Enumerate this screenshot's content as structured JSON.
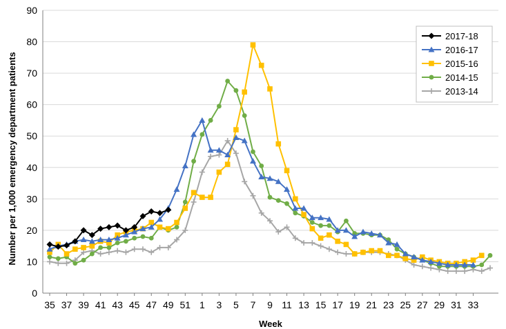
{
  "chart_data": {
    "type": "line",
    "xlabel": "Week",
    "ylabel": "Number per 1,000 emergency department patients",
    "ylim": [
      0,
      90
    ],
    "yticks": [
      0,
      10,
      20,
      30,
      40,
      50,
      60,
      70,
      80,
      90
    ],
    "legend_position": "top-right",
    "grid": true,
    "weeks": [
      "35",
      "36",
      "37",
      "38",
      "39",
      "40",
      "41",
      "42",
      "43",
      "44",
      "45",
      "46",
      "47",
      "48",
      "49",
      "50",
      "51",
      "52",
      "1",
      "2",
      "3",
      "4",
      "5",
      "6",
      "7",
      "8",
      "9",
      "10",
      "11",
      "12",
      "13",
      "14",
      "15",
      "16",
      "17",
      "18",
      "19",
      "20",
      "21",
      "22",
      "23",
      "24",
      "25",
      "26",
      "27",
      "28",
      "29",
      "30",
      "31",
      "32",
      "33",
      "34",
      "35"
    ],
    "tick_labels": [
      "35",
      "37",
      "39",
      "41",
      "43",
      "45",
      "47",
      "49",
      "51",
      "1",
      "3",
      "5",
      "7",
      "9",
      "11",
      "13",
      "15",
      "17",
      "19",
      "21",
      "23",
      "25",
      "27",
      "29",
      "31",
      "33"
    ],
    "series": [
      {
        "name": "2017-18",
        "color": "#000000",
        "marker": "diamond",
        "values": [
          15.5,
          14.8,
          15.2,
          16.5,
          20.0,
          18.5,
          20.5,
          21.0,
          21.5,
          20.0,
          21.0,
          24.5,
          26.0,
          25.5,
          26.5
        ]
      },
      {
        "name": "2016-17",
        "color": "#4472c4",
        "marker": "triangle",
        "values": [
          14.0,
          15.0,
          15.5,
          16.5,
          17.0,
          16.5,
          17.0,
          17.0,
          17.5,
          18.5,
          19.5,
          20.5,
          21.0,
          23.5,
          27.0,
          33.0,
          40.5,
          50.5,
          55.0,
          45.5,
          45.5,
          44.0,
          49.5,
          48.5,
          42.0,
          37.0,
          36.5,
          35.5,
          33.0,
          27.0,
          27.0,
          24.0,
          24.0,
          23.5,
          20.0,
          20.0,
          18.0,
          19.5,
          19.0,
          18.5,
          16.0,
          15.5,
          12.5,
          11.5,
          10.5,
          10.0,
          9.5,
          9.0,
          9.0,
          9.0,
          9.0
        ]
      },
      {
        "name": "2015-16",
        "color": "#ffc000",
        "marker": "square",
        "values": [
          13.0,
          15.5,
          12.5,
          14.0,
          14.5,
          15.0,
          16.5,
          16.0,
          18.5,
          19.5,
          20.0,
          20.5,
          22.5,
          21.0,
          20.5,
          22.5,
          27.0,
          32.0,
          30.5,
          30.5,
          38.5,
          41.0,
          52.0,
          64.0,
          79.0,
          72.5,
          65.0,
          47.5,
          39.0,
          30.0,
          25.0,
          20.5,
          17.5,
          18.5,
          16.5,
          15.5,
          12.5,
          13.0,
          13.5,
          13.5,
          12.0,
          12.0,
          11.0,
          10.5,
          11.5,
          10.5,
          10.0,
          9.5,
          9.5,
          10.0,
          10.5,
          12.0
        ]
      },
      {
        "name": "2014-15",
        "color": "#70ad47",
        "marker": "circle",
        "values": [
          11.5,
          11.0,
          11.5,
          9.5,
          10.5,
          12.5,
          14.5,
          14.5,
          16.0,
          16.5,
          17.5,
          18.0,
          17.5,
          21.0,
          20.0,
          21.0,
          29.0,
          42.0,
          50.5,
          55.0,
          59.5,
          67.5,
          64.5,
          56.5,
          45.0,
          40.5,
          30.5,
          29.5,
          28.5,
          25.5,
          24.5,
          22.5,
          21.5,
          21.5,
          19.5,
          23.0,
          19.0,
          19.0,
          18.5,
          18.5,
          17.0,
          14.0,
          12.5,
          11.5,
          10.5,
          9.5,
          8.5,
          8.5,
          8.5,
          8.5,
          8.5,
          9.0,
          12.0
        ]
      },
      {
        "name": "2013-14",
        "color": "#a6a6a6",
        "marker": "plus",
        "values": [
          10.0,
          9.5,
          9.5,
          10.5,
          13.0,
          13.5,
          12.5,
          13.0,
          13.5,
          13.0,
          14.0,
          14.0,
          13.0,
          14.5,
          14.5,
          17.0,
          20.0,
          29.0,
          38.5,
          43.5,
          44.0,
          48.5,
          44.5,
          35.5,
          31.0,
          25.5,
          23.0,
          19.5,
          21.0,
          17.5,
          16.0,
          16.0,
          15.0,
          14.0,
          13.0,
          12.5,
          12.5,
          13.0,
          13.0,
          13.0,
          12.5,
          12.0,
          10.5,
          9.0,
          8.5,
          8.0,
          7.5,
          7.0,
          7.0,
          7.0,
          7.5,
          7.0,
          8.0
        ]
      }
    ]
  }
}
